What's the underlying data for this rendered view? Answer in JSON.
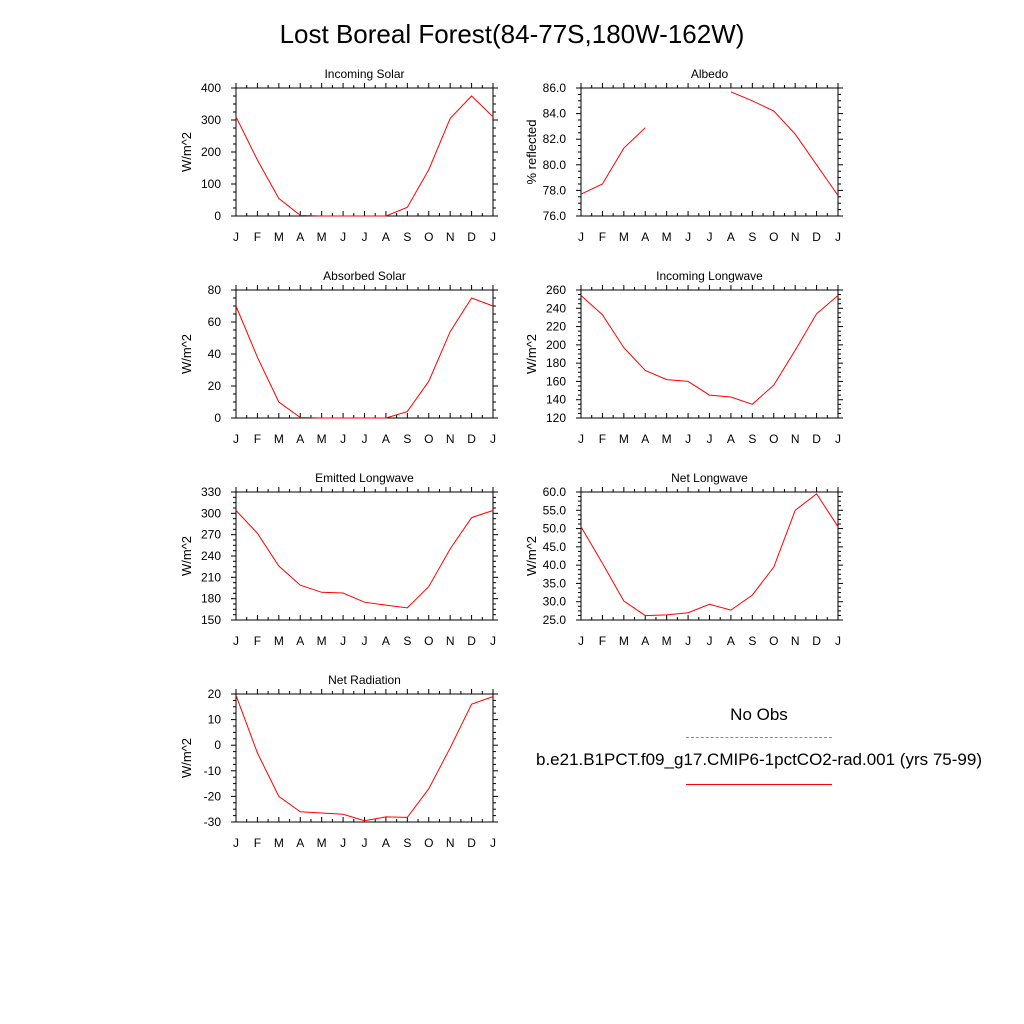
{
  "title": "Lost Boreal Forest(84-77S,180W-162W)",
  "legend": [
    {
      "label": "No Obs",
      "color": "#7f7fff",
      "style": "dashed"
    },
    {
      "label": "b.e21.B1PCT.f09_g17.CMIP6-1pctCO2-rad.001 (yrs 75-99)",
      "color": "#ff0000",
      "style": "solid"
    }
  ],
  "chart_data": [
    {
      "type": "line",
      "title": "Incoming Solar",
      "ylabel": "W/m^2",
      "x": [
        "J",
        "F",
        "M",
        "A",
        "M",
        "J",
        "J",
        "A",
        "S",
        "O",
        "N",
        "D",
        "J"
      ],
      "ylim": [
        0,
        400
      ],
      "yticks": [
        "0",
        "100",
        "200",
        "300",
        "400"
      ],
      "series": [
        {
          "color": "#ff0000",
          "values": [
            310,
            175,
            55,
            2,
            0,
            0,
            0,
            0,
            27,
            145,
            305,
            375,
            310
          ]
        }
      ]
    },
    {
      "type": "line",
      "title": "Albedo",
      "ylabel": "% reflected",
      "x": [
        "J",
        "F",
        "M",
        "A",
        "M",
        "J",
        "J",
        "A",
        "S",
        "O",
        "N",
        "D",
        "J"
      ],
      "ylim": [
        76,
        86
      ],
      "yticks": [
        "76.0",
        "78.0",
        "80.0",
        "82.0",
        "84.0",
        "86.0"
      ],
      "series": [
        {
          "color": "#ff0000",
          "values": [
            77.7,
            78.5,
            81.3,
            82.9,
            null,
            null,
            null,
            85.7,
            85.0,
            84.2,
            82.4,
            80.0,
            77.6
          ]
        }
      ]
    },
    {
      "type": "line",
      "title": "Absorbed Solar",
      "ylabel": "W/m^2",
      "x": [
        "J",
        "F",
        "M",
        "A",
        "M",
        "J",
        "J",
        "A",
        "S",
        "O",
        "N",
        "D",
        "J"
      ],
      "ylim": [
        0,
        80
      ],
      "yticks": [
        "0",
        "20",
        "40",
        "60",
        "80"
      ],
      "series": [
        {
          "color": "#ff0000",
          "values": [
            70,
            38,
            10,
            0.3,
            0,
            0,
            0,
            0,
            4,
            23,
            54,
            75,
            70
          ]
        }
      ]
    },
    {
      "type": "line",
      "title": "Incoming Longwave",
      "ylabel": "W/m^2",
      "x": [
        "J",
        "F",
        "M",
        "A",
        "M",
        "J",
        "J",
        "A",
        "S",
        "O",
        "N",
        "D",
        "J"
      ],
      "ylim": [
        120,
        260
      ],
      "yticks": [
        "120",
        "140",
        "160",
        "180",
        "200",
        "220",
        "240",
        "260"
      ],
      "series": [
        {
          "color": "#ff0000",
          "values": [
            254,
            233,
            197,
            172,
            162,
            160,
            145,
            143,
            135,
            156,
            194,
            234,
            254
          ]
        }
      ]
    },
    {
      "type": "line",
      "title": "Emitted Longwave",
      "ylabel": "W/m^2",
      "x": [
        "J",
        "F",
        "M",
        "A",
        "M",
        "J",
        "J",
        "A",
        "S",
        "O",
        "N",
        "D",
        "J"
      ],
      "ylim": [
        150,
        330
      ],
      "yticks": [
        "150",
        "180",
        "210",
        "240",
        "270",
        "300",
        "330"
      ],
      "series": [
        {
          "color": "#ff0000",
          "values": [
            304,
            272,
            226,
            199,
            189,
            188,
            175,
            171,
            167,
            197,
            250,
            294,
            304
          ]
        }
      ]
    },
    {
      "type": "line",
      "title": "Net Longwave",
      "ylabel": "W/m^2",
      "x": [
        "J",
        "F",
        "M",
        "A",
        "M",
        "J",
        "J",
        "A",
        "S",
        "O",
        "N",
        "D",
        "J"
      ],
      "ylim": [
        25,
        60
      ],
      "yticks": [
        "25.0",
        "30.0",
        "35.0",
        "40.0",
        "45.0",
        "50.0",
        "55.0",
        "60.0"
      ],
      "series": [
        {
          "color": "#ff0000",
          "values": [
            50.5,
            40.5,
            30.2,
            26.2,
            26.4,
            27.0,
            29.3,
            27.7,
            31.8,
            39.5,
            55.0,
            59.5,
            50.5
          ]
        }
      ]
    },
    {
      "type": "line",
      "title": "Net Radiation",
      "ylabel": "W/m^2",
      "x": [
        "J",
        "F",
        "M",
        "A",
        "M",
        "J",
        "J",
        "A",
        "S",
        "O",
        "N",
        "D",
        "J"
      ],
      "ylim": [
        -30,
        20
      ],
      "yticks": [
        "-30",
        "-20",
        "-10",
        "0",
        "10",
        "20"
      ],
      "series": [
        {
          "color": "#ff0000",
          "values": [
            19.5,
            -3,
            -20,
            -26,
            -26.5,
            -27,
            -29.5,
            -28,
            -28.2,
            -17,
            -1,
            16,
            19
          ]
        }
      ]
    }
  ]
}
